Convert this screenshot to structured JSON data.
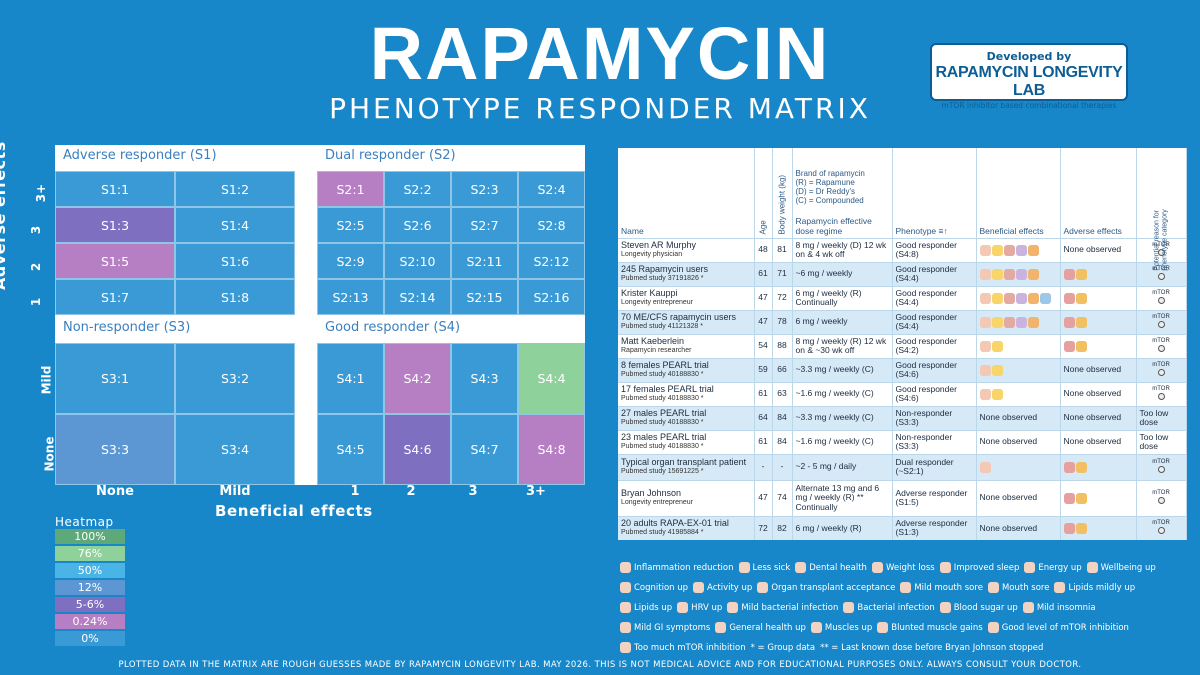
{
  "title": "RAPAMYCIN",
  "subtitle": "PHENOTYPE RESPONDER MATRIX",
  "badge": {
    "line1": "Developed by",
    "line2": "RAPAMYCIN LONGEVITY LAB",
    "line3": "mTOR inhibitor based combinational therapies"
  },
  "colors": {
    "bg": "#1787c9",
    "c0": "#3a9ad5",
    "c12": "#5c97d3",
    "c024": "#b77fc3",
    "c56": "#7e6fc0",
    "c50": "#4bb4e6",
    "c76": "#8fd19a",
    "c100": "#5da97a"
  },
  "chart_data": {
    "type": "heatmap",
    "xlabel": "Beneficial effects",
    "ylabel": "Adverse effects",
    "x_ticks": [
      "None",
      "Mild",
      "1",
      "2",
      "3",
      "3+"
    ],
    "y_ticks": [
      "3+",
      "3",
      "2",
      "1",
      "Mild",
      "None"
    ],
    "quadrants": [
      {
        "name": "Adverse responder (S1)",
        "cells": [
          {
            "label": "S1:1",
            "value": "0%"
          },
          {
            "label": "S1:2",
            "value": "0%"
          },
          {
            "label": "S1:3",
            "value": "5-6%"
          },
          {
            "label": "S1:4",
            "value": "0%"
          },
          {
            "label": "S1:5",
            "value": "0.24%"
          },
          {
            "label": "S1:6",
            "value": "0%"
          },
          {
            "label": "S1:7",
            "value": "0%"
          },
          {
            "label": "S1:8",
            "value": "0%"
          }
        ]
      },
      {
        "name": "Dual responder (S2)",
        "cells": [
          {
            "label": "S2:1",
            "value": "0.24%"
          },
          {
            "label": "S2:2",
            "value": "0%"
          },
          {
            "label": "S2:3",
            "value": "0%"
          },
          {
            "label": "S2:4",
            "value": "0%"
          },
          {
            "label": "S2:5",
            "value": "0%"
          },
          {
            "label": "S2:6",
            "value": "0%"
          },
          {
            "label": "S2:7",
            "value": "0%"
          },
          {
            "label": "S2:8",
            "value": "0%"
          },
          {
            "label": "S2:9",
            "value": "0%"
          },
          {
            "label": "S2:10",
            "value": "0%"
          },
          {
            "label": "S2:11",
            "value": "0%"
          },
          {
            "label": "S2:12",
            "value": "0%"
          },
          {
            "label": "S2:13",
            "value": "0%"
          },
          {
            "label": "S2:14",
            "value": "0%"
          },
          {
            "label": "S2:15",
            "value": "0%"
          },
          {
            "label": "S2:16",
            "value": "0%"
          }
        ]
      },
      {
        "name": "Non-responder (S3)",
        "cells": [
          {
            "label": "S3:1",
            "value": "0%"
          },
          {
            "label": "S3:2",
            "value": "0%"
          },
          {
            "label": "S3:3",
            "value": "12%"
          },
          {
            "label": "S3:4",
            "value": "0%"
          }
        ]
      },
      {
        "name": "Good responder (S4)",
        "cells": [
          {
            "label": "S4:1",
            "value": "0%"
          },
          {
            "label": "S4:2",
            "value": "0.24%"
          },
          {
            "label": "S4:3",
            "value": "0%"
          },
          {
            "label": "S4:4",
            "value": "76%"
          },
          {
            "label": "S4:5",
            "value": "0%"
          },
          {
            "label": "S4:6",
            "value": "5-6%"
          },
          {
            "label": "S4:7",
            "value": "0%"
          },
          {
            "label": "S4:8",
            "value": "0.24%"
          }
        ]
      }
    ],
    "heatmap_legend_title": "Heatmap",
    "heatmap_legend": [
      "100%",
      "76%",
      "50%",
      "12%",
      "5-6%",
      "0.24%",
      "0%"
    ]
  },
  "table": {
    "headers": {
      "name": "Name",
      "age": "Age",
      "weight": "Body weight (kg)",
      "brand": [
        "Brand of rapamycin",
        "(R) = Rapamune",
        "(D) = Dr Reddy's",
        "(C) = Compounded"
      ],
      "dose": "Rapamycin effective dose regime",
      "phenotype": "Phenotype",
      "beneficial": "Beneficial effects",
      "adverse": "Adverse effects",
      "reason": "Potential reason for phenotype category"
    },
    "rows": [
      {
        "name": "Steven AR Murphy",
        "sub": "Longevity physician",
        "age": "48",
        "weight": "81",
        "dose": "8 mg / weekly (D) 12 wk on & 4 wk off",
        "phen": "Good responder",
        "code": "(S4:8)",
        "ben": 5,
        "adv": "None observed",
        "reason": "mTOR"
      },
      {
        "name": "245 Rapamycin users",
        "sub": "Pubmed study 37191826 *",
        "age": "61",
        "weight": "71",
        "dose": "~6 mg / weekly",
        "phen": "Good responder",
        "code": "(S4:4)",
        "ben": 5,
        "adv": "",
        "reason": "mTOR"
      },
      {
        "name": "Krister Kauppi",
        "sub": "Longevity entrepreneur",
        "age": "47",
        "weight": "72",
        "dose": "6 mg / weekly (R) Continually",
        "phen": "Good responder",
        "code": "(S4:4)",
        "ben": 6,
        "adv": "",
        "reason": "mTOR"
      },
      {
        "name": "70 ME/CFS rapamycin users",
        "sub": "Pubmed study 41121328 *",
        "age": "47",
        "weight": "78",
        "dose": "6 mg / weekly",
        "phen": "Good responder",
        "code": "(S4:4)",
        "ben": 5,
        "adv": "",
        "reason": "mTOR"
      },
      {
        "name": "Matt Kaeberlein",
        "sub": "Rapamycin researcher",
        "age": "54",
        "weight": "88",
        "dose": "8 mg / weekly (R) 12 wk on & ~30 wk off",
        "phen": "Good responder",
        "code": "(S4:2)",
        "ben": 2,
        "adv": "",
        "reason": "mTOR"
      },
      {
        "name": "8 females PEARL trial",
        "sub": "Pubmed study 40188830 *",
        "age": "59",
        "weight": "66",
        "dose": "~3.3 mg / weekly (C)",
        "phen": "Good responder",
        "code": "(S4:6)",
        "ben": 2,
        "adv": "None observed",
        "reason": "mTOR"
      },
      {
        "name": "17 females PEARL trial",
        "sub": "Pubmed study 40188830 *",
        "age": "61",
        "weight": "63",
        "dose": "~1.6 mg / weekly (C)",
        "phen": "Good responder",
        "code": "(S4:6)",
        "ben": 2,
        "adv": "None observed",
        "reason": "mTOR"
      },
      {
        "name": "27 males PEARL trial",
        "sub": "Pubmed study 40188830 *",
        "age": "64",
        "weight": "84",
        "dose": "~3.3 mg / weekly (C)",
        "phen": "Non-responder",
        "code": "(S3:3)",
        "ben": 0,
        "bentext": "None observed",
        "adv": "None observed",
        "reason": "Too low dose"
      },
      {
        "name": "23 males PEARL trial",
        "sub": "Pubmed study 40188830 *",
        "age": "61",
        "weight": "84",
        "dose": "~1.6 mg / weekly (C)",
        "phen": "Non-responder",
        "code": "(S3:3)",
        "ben": 0,
        "bentext": "None observed",
        "adv": "None observed",
        "reason": "Too low dose"
      },
      {
        "name": "Typical organ transplant patient",
        "sub": "Pubmed study 15691225 *",
        "age": "-",
        "weight": "-",
        "dose": "~2 - 5 mg / daily",
        "phen": "Dual responder",
        "code": "(~S2:1)",
        "ben": 1,
        "adv": "",
        "reason": "mTOR"
      },
      {
        "name": "Bryan Johnson",
        "sub": "Longevity entrepreneur",
        "age": "47",
        "weight": "74",
        "dose": "Alternate 13 mg and 6 mg / weekly (R) ** Continually",
        "phen": "Adverse responder",
        "code": "(S1:5)",
        "ben": 0,
        "bentext": "None observed",
        "adv": "",
        "reason": "mTOR"
      },
      {
        "name": "20 adults RAPA-EX-01 trial",
        "sub": "Pubmed study 41985884 *",
        "age": "72",
        "weight": "82",
        "dose": "6 mg / weekly (R)",
        "phen": "Adverse responder",
        "code": "(S1:3)",
        "ben": 0,
        "bentext": "None observed",
        "adv": "",
        "reason": "mTOR"
      }
    ]
  },
  "legend": [
    "Inflammation reduction",
    "Less sick",
    "Dental health",
    "Weight loss",
    "Improved sleep",
    "Energy up",
    "Wellbeing up",
    "Cognition up",
    "Activity up",
    "Organ transplant acceptance",
    "Mild mouth sore",
    "Mouth sore",
    "Lipids mildly up",
    "Lipids up",
    "HRV up",
    "Mild bacterial infection",
    "Bacterial infection",
    "Blood sugar up",
    "Mild insomnia",
    "Mild GI symptoms",
    "General health up",
    "Muscles up",
    "Blunted muscle gains",
    "Good level of mTOR inhibition",
    "Too much mTOR inhibition",
    "* = Group data",
    "** = Last known dose before Bryan Johnson stopped"
  ],
  "footer": "PLOTTED DATA IN THE MATRIX ARE ROUGH GUESSES MADE BY RAPAMYCIN LONGEVITY LAB. MAY 2026. THIS IS NOT MEDICAL ADVICE AND FOR EDUCATIONAL PURPOSES ONLY. ALWAYS CONSULT YOUR DOCTOR."
}
